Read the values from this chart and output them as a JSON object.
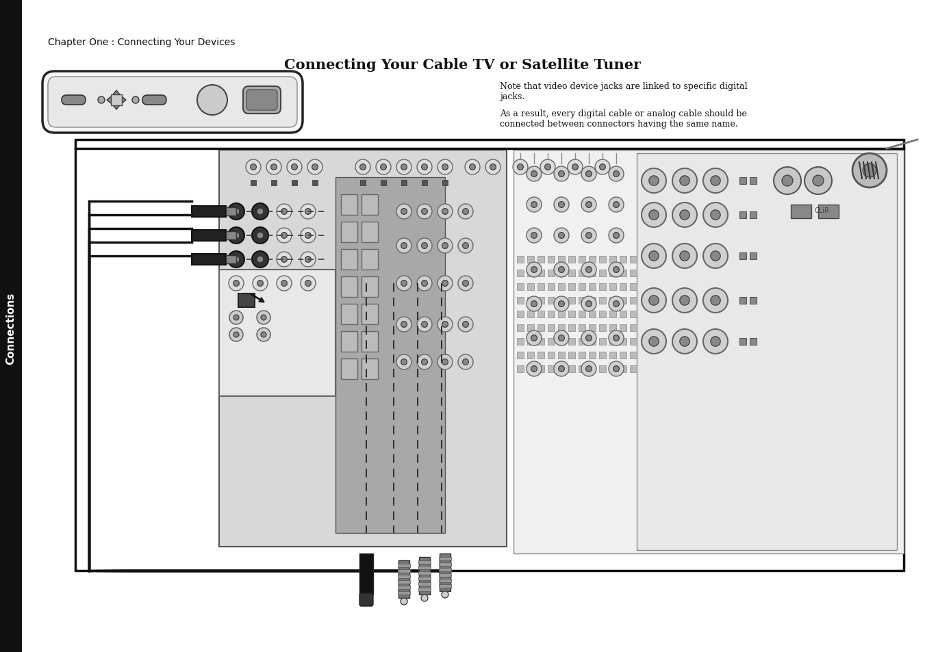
{
  "title": "Connecting Your Cable TV or Satellite Tuner",
  "chapter_text": "Chapter One : Connecting Your Devices",
  "note_text1": "Note that video device jacks are linked to specific digital\njacks.",
  "note_text2": "As a result, every digital cable or analog cable should be\nconnected between connectors having the same name.",
  "sidebar_text": "Connections",
  "bg_color": "#ffffff",
  "sidebar_bg": "#111111",
  "sidebar_text_color": "#ffffff",
  "body_text_color": "#111111",
  "title_fontsize": 15,
  "chapter_fontsize": 10,
  "note_fontsize": 9,
  "sidebar_fontsize": 11
}
